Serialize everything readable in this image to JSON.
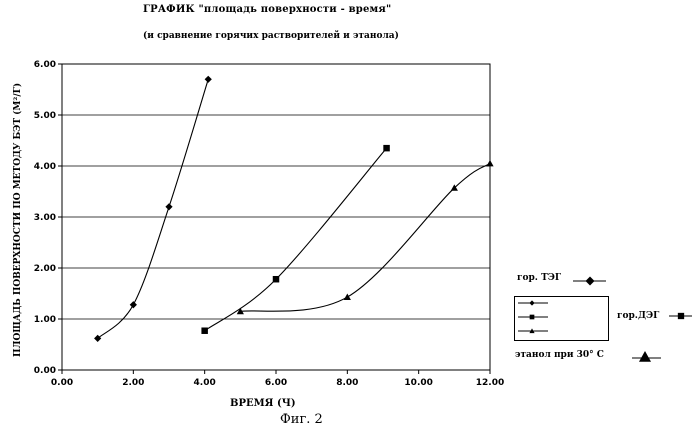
{
  "chart_data": {
    "type": "line",
    "title": "ГРАФИК \"площадь поверхности - время\"",
    "subtitle": "(и сравнение горячих растворителей и этанола)",
    "xlabel": "ВРЕМЯ (Ч)",
    "ylabel": "ПЛОЩАДЬ ПОВЕРХНОСТИ ПО МЕТОДУ БЭТ (М²/Г)",
    "xlim": [
      0,
      12
    ],
    "ylim": [
      0,
      6
    ],
    "x_ticks": [
      "0.00",
      "2.00",
      "4.00",
      "6.00",
      "8.00",
      "10.00",
      "12.00"
    ],
    "y_ticks": [
      "0.00",
      "1.00",
      "2.00",
      "3.00",
      "4.00",
      "5.00",
      "6.00"
    ],
    "grid": "horizontal",
    "series": [
      {
        "name": "гор. ТЭГ",
        "marker": "diamond",
        "x": [
          1.0,
          2.0,
          3.0,
          4.1
        ],
        "y": [
          0.62,
          1.28,
          3.2,
          5.7
        ]
      },
      {
        "name": "гор.ДЭГ",
        "marker": "square",
        "x": [
          4.0,
          6.0,
          9.1
        ],
        "y": [
          0.77,
          1.78,
          4.35
        ]
      },
      {
        "name": "этанол при 30° С",
        "marker": "triangle",
        "x": [
          5.0,
          8.0,
          11.0,
          12.0
        ],
        "y": [
          1.15,
          1.43,
          3.57,
          4.05
        ]
      }
    ]
  },
  "legend": {
    "teg": "гор. ТЭГ",
    "deg": "гор.ДЭГ",
    "ethanol": "этанол при 30° С"
  },
  "caption": "Фиг. 2"
}
